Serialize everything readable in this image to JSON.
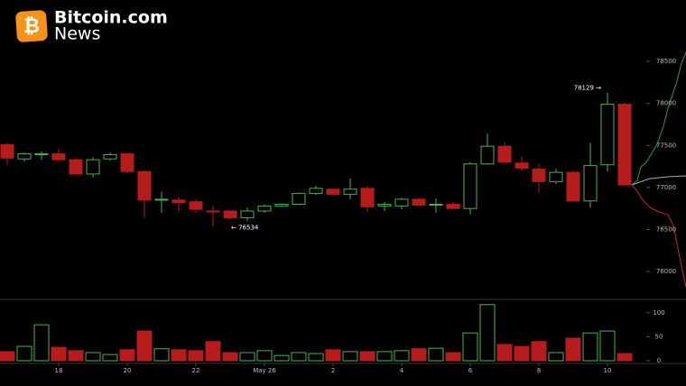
{
  "logo": {
    "icon": "₿",
    "name": "Bitcoin.com",
    "sub": "News"
  },
  "chart_data": {
    "type": "candlestick",
    "categories": [
      null,
      null,
      null,
      "18",
      null,
      null,
      null,
      "20",
      null,
      null,
      null,
      "22",
      null,
      null,
      null,
      "May 26",
      null,
      null,
      null,
      "2",
      null,
      null,
      null,
      "4",
      null,
      null,
      null,
      "6",
      null,
      null,
      null,
      "8",
      null,
      null,
      null,
      "10",
      null
    ],
    "open": [
      77510,
      77340,
      77390,
      77400,
      77330,
      77160,
      77340,
      77400,
      77190,
      76850,
      76850,
      76830,
      76720,
      76720,
      76640,
      76720,
      76780,
      76800,
      76930,
      76980,
      76920,
      76990,
      76780,
      76780,
      76860,
      76790,
      76800,
      76750,
      77280,
      77490,
      77290,
      77220,
      77070,
      77180,
      76840,
      77270,
      77990
    ],
    "high": [
      77530,
      77420,
      77430,
      77460,
      77350,
      77360,
      77420,
      77410,
      77200,
      76950,
      76890,
      76860,
      76790,
      76730,
      76760,
      76800,
      76810,
      76940,
      77020,
      76990,
      77110,
      77020,
      76830,
      76880,
      76870,
      76870,
      76830,
      77300,
      77640,
      77540,
      77370,
      77280,
      77220,
      77200,
      77530,
      78129,
      78010
    ],
    "low": [
      77270,
      77310,
      77330,
      77320,
      77150,
      77120,
      77320,
      77170,
      76640,
      76700,
      76720,
      76700,
      76534,
      76620,
      76600,
      76700,
      76780,
      76790,
      76910,
      76900,
      76860,
      76710,
      76720,
      76740,
      76780,
      76700,
      76740,
      76680,
      77270,
      77290,
      77200,
      76940,
      77040,
      76830,
      76760,
      77190,
      77020
    ],
    "close": [
      77350,
      77400,
      77400,
      77330,
      77160,
      77330,
      77390,
      77190,
      76850,
      76860,
      76820,
      76740,
      76710,
      76640,
      76720,
      76780,
      76800,
      76930,
      76990,
      76920,
      76980,
      76770,
      76800,
      76860,
      76790,
      76800,
      76750,
      77280,
      77490,
      77300,
      77230,
      77070,
      77180,
      76840,
      77260,
      77990,
      77030
    ],
    "up_color": "#4caf50",
    "down_color": "#b71c1c",
    "ylim": [
      75690,
      79230
    ],
    "yticks": [
      76000,
      76500,
      77000,
      77500,
      78000,
      78500
    ],
    "annotations": [
      {
        "text": "78129 →"
      },
      {
        "text": "← 76534"
      }
    ],
    "volume": {
      "values": [
        19,
        30,
        75,
        28,
        21,
        17,
        13,
        23,
        62,
        25,
        23,
        21,
        40,
        17,
        17,
        21,
        11,
        17,
        15,
        23,
        19,
        19,
        19,
        21,
        25,
        26,
        17,
        58,
        117,
        34,
        30,
        40,
        17,
        47,
        58,
        62,
        15
      ],
      "ylim": [
        0,
        126
      ],
      "yticks": [
        0,
        50,
        100
      ]
    }
  }
}
